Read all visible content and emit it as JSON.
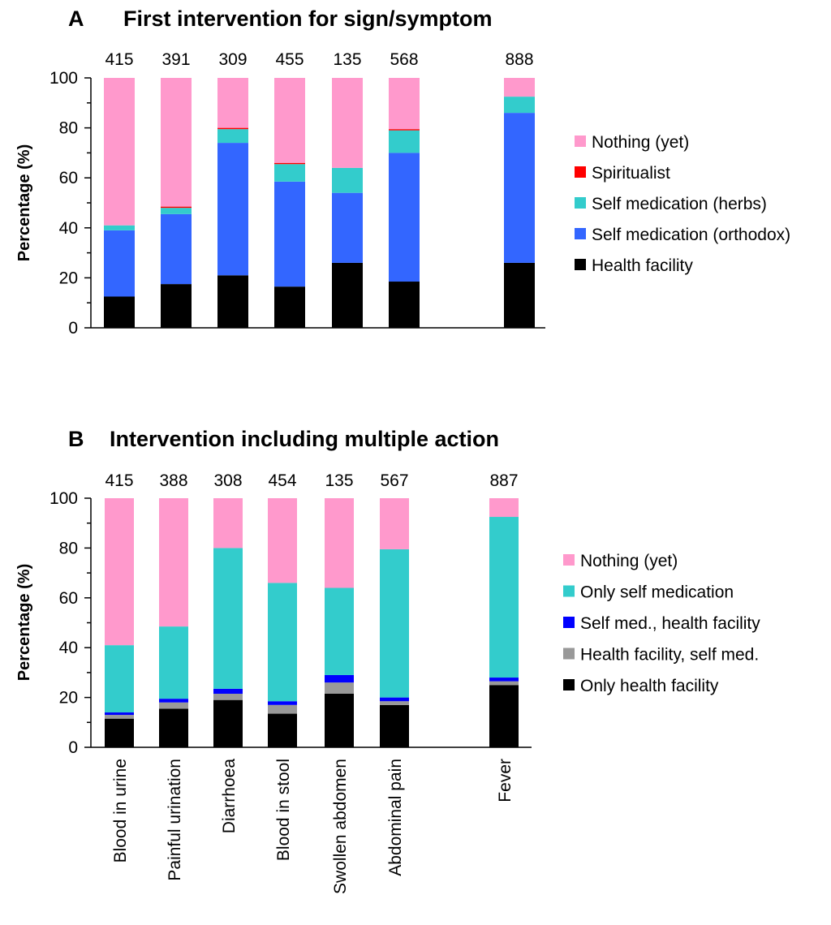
{
  "chart_data": [
    {
      "type": "bar",
      "stacked": true,
      "panel": "A",
      "title": "First intervention for sign/symptom",
      "ylabel": "Percentage (%)",
      "ylim": [
        0,
        100
      ],
      "yticks": [
        "0",
        "20",
        "40",
        "60",
        "80",
        "100"
      ],
      "categories": [
        "Blood in urine",
        "Painful urination",
        "Diarrhoea",
        "Blood in stool",
        "Swollen abdomen",
        "Abdominal pain",
        "Fever"
      ],
      "counts": [
        "415",
        "391",
        "309",
        "455",
        "135",
        "568",
        "888"
      ],
      "series": [
        {
          "name": "Health facility",
          "color": "#000000",
          "values": [
            12.5,
            17.5,
            21,
            16.5,
            26,
            18.5,
            26
          ]
        },
        {
          "name": "Self medication (orthodox)",
          "color": "#3366ff",
          "values": [
            26.5,
            28,
            53,
            42,
            28,
            51.5,
            60
          ]
        },
        {
          "name": "Self medication (herbs)",
          "color": "#33cccc",
          "values": [
            2,
            2.5,
            5.5,
            7,
            10,
            9,
            6.5
          ]
        },
        {
          "name": "Spiritualist",
          "color": "#ff0000",
          "values": [
            0,
            0.5,
            0.5,
            0.5,
            0,
            0.5,
            0
          ]
        },
        {
          "name": "Nothing (yet)",
          "color": "#ff99cc",
          "values": [
            59,
            51.5,
            20,
            34,
            36,
            20.5,
            7.5
          ]
        }
      ],
      "legend_order": [
        "Nothing (yet)",
        "Spiritualist",
        "Self medication (herbs)",
        "Self medication (orthodox)",
        "Health facility"
      ],
      "legend": "right"
    },
    {
      "type": "bar",
      "stacked": true,
      "panel": "B",
      "title": "Intervention including multiple action",
      "ylabel": "Percentage (%)",
      "ylim": [
        0,
        100
      ],
      "yticks": [
        "0",
        "20",
        "40",
        "60",
        "80",
        "100"
      ],
      "categories": [
        "Blood in urine",
        "Painful urination",
        "Diarrhoea",
        "Blood in stool",
        "Swollen abdomen",
        "Abdominal pain",
        "Fever"
      ],
      "counts": [
        "415",
        "388",
        "308",
        "454",
        "135",
        "567",
        "887"
      ],
      "series": [
        {
          "name": "Only health facility",
          "color": "#000000",
          "values": [
            11.5,
            15.5,
            19,
            13.5,
            21.5,
            17,
            25
          ]
        },
        {
          "name": "Health facility, self med.",
          "color": "#999999",
          "values": [
            1.5,
            2.5,
            2.5,
            3.5,
            4.5,
            1.5,
            1.5
          ]
        },
        {
          "name": "Self med., health facility",
          "color": "#0000ff",
          "values": [
            1,
            1.5,
            2,
            1.5,
            3,
            1.5,
            1.5
          ]
        },
        {
          "name": "Only self medication",
          "color": "#33cccc",
          "values": [
            27,
            29,
            56.5,
            47.5,
            35,
            59.5,
            64.5
          ]
        },
        {
          "name": "Nothing (yet)",
          "color": "#ff99cc",
          "values": [
            59,
            51.5,
            20,
            34,
            36,
            20.5,
            7.5
          ]
        }
      ],
      "legend_order": [
        "Nothing (yet)",
        "Only self medication",
        "Self med., health facility",
        "Health facility, self med.",
        "Only health facility"
      ],
      "legend": "right"
    }
  ]
}
